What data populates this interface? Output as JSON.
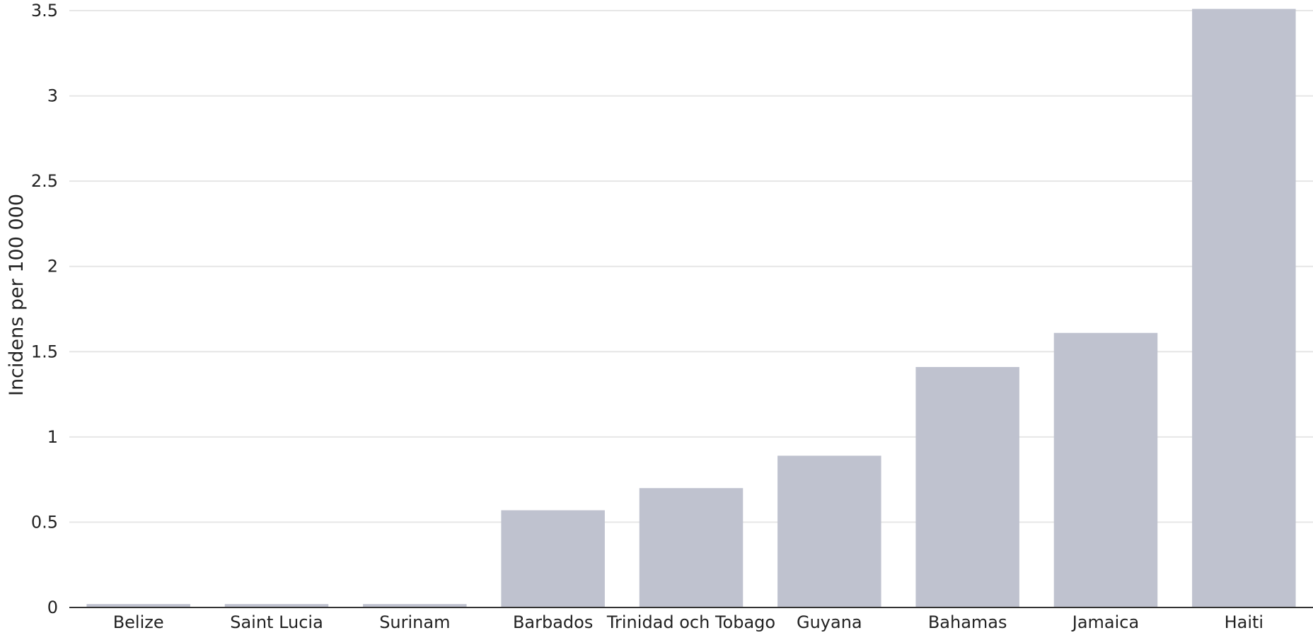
{
  "chart_data": {
    "type": "bar",
    "title": "",
    "xlabel": "",
    "ylabel": "Incidens per 100 000",
    "categories": [
      "Belize",
      "Saint Lucia",
      "Surinam",
      "Barbados",
      "Trinidad och Tobago",
      "Guyana",
      "Bahamas",
      "Jamaica",
      "Haiti"
    ],
    "values": [
      0.02,
      0.02,
      0.02,
      0.57,
      0.7,
      0.89,
      1.41,
      1.61,
      3.51
    ],
    "ylim": [
      0,
      3.5
    ],
    "yticks": [
      "0",
      "0.5",
      "1",
      "1.5",
      "2",
      "2.5",
      "3",
      "3.5"
    ],
    "grid": true,
    "colors": {
      "bar": "#bfc2cf",
      "grid": "#e6e6e6",
      "axis": "#333333"
    }
  }
}
